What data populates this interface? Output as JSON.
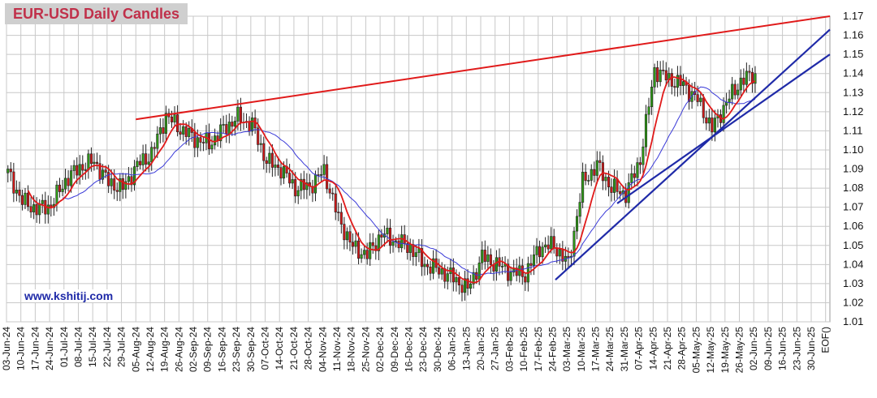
{
  "chart_data": {
    "type": "candlestick",
    "title": "EUR-USD Daily  Candles",
    "watermark": "www.kshitij.com",
    "ylim": [
      1.01,
      1.17
    ],
    "y_ticks": [
      "1.01",
      "1.02",
      "1.03",
      "1.04",
      "1.05",
      "1.06",
      "1.07",
      "1.08",
      "1.09",
      "1.10",
      "1.11",
      "1.12",
      "1.13",
      "1.14",
      "1.15",
      "1.16",
      "1.17"
    ],
    "x_ticks": [
      "03-Jun-24",
      "10-Jun-24",
      "17-Jun-24",
      "24-Jun-24",
      "01-Jul-24",
      "08-Jul-24",
      "15-Jul-24",
      "22-Jul-24",
      "29-Jul-24",
      "05-Aug-24",
      "12-Aug-24",
      "19-Aug-24",
      "26-Aug-24",
      "02-Sep-24",
      "09-Sep-24",
      "16-Sep-24",
      "23-Sep-24",
      "30-Sep-24",
      "07-Oct-24",
      "14-Oct-24",
      "21-Oct-24",
      "28-Oct-24",
      "04-Nov-24",
      "11-Nov-24",
      "18-Nov-24",
      "25-Nov-24",
      "02-Dec-24",
      "09-Dec-24",
      "16-Dec-24",
      "23-Dec-24",
      "30-Dec-24",
      "06-Jan-25",
      "13-Jan-25",
      "20-Jan-25",
      "27-Jan-25",
      "03-Feb-25",
      "10-Feb-25",
      "17-Feb-25",
      "24-Feb-25",
      "03-Mar-25",
      "10-Mar-25",
      "17-Mar-25",
      "24-Mar-25",
      "31-Mar-25",
      "07-Apr-25",
      "14-Apr-25",
      "21-Apr-25",
      "28-Apr-25",
      "05-May-25",
      "12-May-25",
      "19-May-25",
      "26-May-25",
      "02-Jun-25",
      "09-Jun-25",
      "16-Jun-25",
      "23-Jun-25",
      "30-Jun-25",
      "EOF()"
    ],
    "grid": true,
    "colors": {
      "up": "#2f9e16",
      "down": "#d41818",
      "ma_fast": "#e01a1a",
      "ma_slow": "#3a3ad8",
      "trendline_resistance": "#e01a1a",
      "trendline_support": "#1f2aa8",
      "title_text": "#c0304a",
      "title_bg": "#cfcfcf",
      "watermark": "#1f2aa8"
    },
    "weekly_closes": [
      1.088,
      1.073,
      1.069,
      1.071,
      1.084,
      1.091,
      1.094,
      1.083,
      1.08,
      1.092,
      1.098,
      1.118,
      1.111,
      1.106,
      1.103,
      1.111,
      1.117,
      1.113,
      1.094,
      1.09,
      1.08,
      1.081,
      1.089,
      1.064,
      1.049,
      1.045,
      1.056,
      1.052,
      1.049,
      1.04,
      1.037,
      1.033,
      1.027,
      1.044,
      1.04,
      1.036,
      1.035,
      1.049,
      1.05,
      1.04,
      1.083,
      1.092,
      1.08,
      1.077,
      1.095,
      1.142,
      1.137,
      1.134,
      1.126,
      1.111,
      1.125,
      1.136,
      1.14
    ]
  }
}
